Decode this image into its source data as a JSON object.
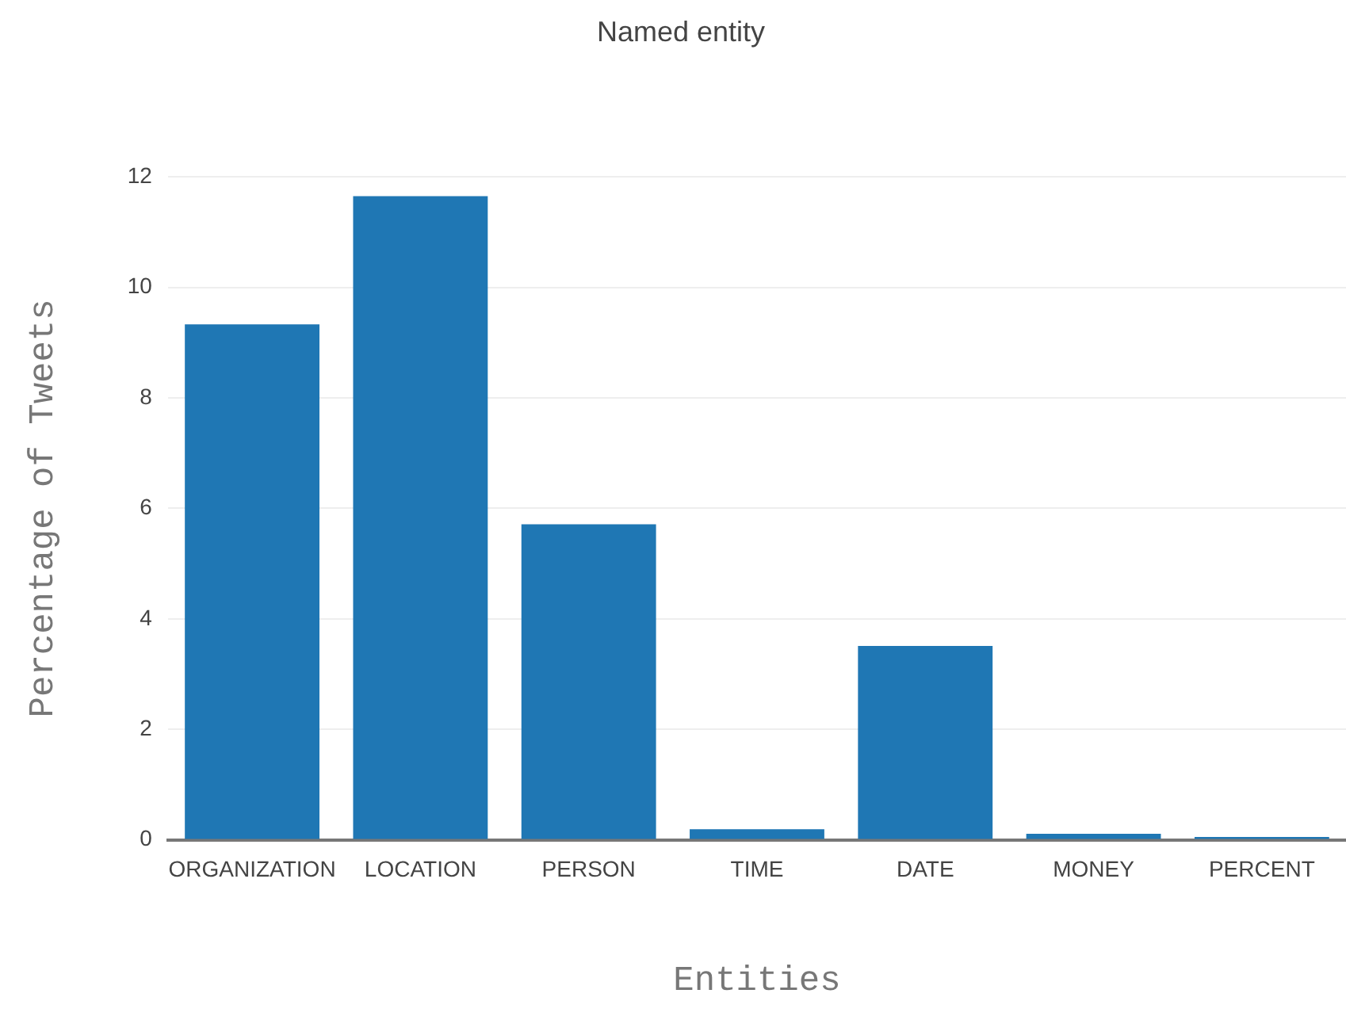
{
  "chart_data": {
    "type": "bar",
    "title": "Named entity",
    "xlabel": "Entities",
    "ylabel": "Percentage of Tweets",
    "categories": [
      "ORGANIZATION",
      "LOCATION",
      "PERSON",
      "TIME",
      "DATE",
      "MONEY",
      "PERCENT"
    ],
    "values": [
      9.33,
      11.65,
      5.71,
      0.19,
      3.51,
      0.11,
      0.05
    ],
    "color": "#1f77b4",
    "ylim": [
      0,
      12
    ],
    "yticks": [
      0,
      2,
      4,
      6,
      8,
      10,
      12
    ],
    "grid": "y"
  }
}
